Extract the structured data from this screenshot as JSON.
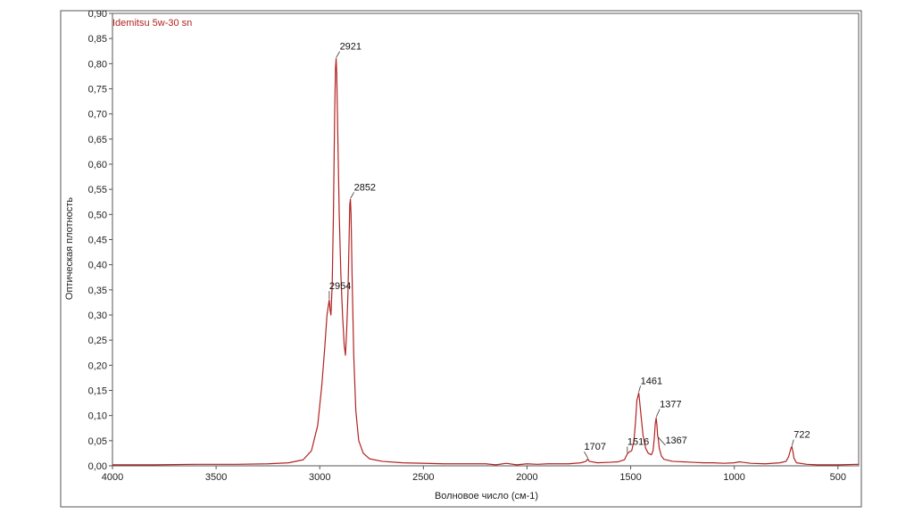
{
  "chart_data": {
    "type": "line",
    "xlabel": "Волновое число (см-1)",
    "ylabel": "Оптическая плотность",
    "xlim": [
      4000,
      400
    ],
    "x_reversed": true,
    "ylim": [
      0,
      0.9
    ],
    "x_ticks": [
      {
        "value": 4000,
        "label": "4000"
      },
      {
        "value": 3500,
        "label": "3500"
      },
      {
        "value": 3000,
        "label": "3000"
      },
      {
        "value": 2500,
        "label": "2500"
      },
      {
        "value": 2000,
        "label": "2000"
      },
      {
        "value": 1500,
        "label": "1500"
      },
      {
        "value": 1000,
        "label": "1000"
      },
      {
        "value": 500,
        "label": "500"
      }
    ],
    "y_ticks": [
      {
        "value": 0.0,
        "label": "0,00"
      },
      {
        "value": 0.05,
        "label": "0,05"
      },
      {
        "value": 0.1,
        "label": "0,10"
      },
      {
        "value": 0.15,
        "label": "0,15"
      },
      {
        "value": 0.2,
        "label": "0,20"
      },
      {
        "value": 0.25,
        "label": "0,25"
      },
      {
        "value": 0.3,
        "label": "0,30"
      },
      {
        "value": 0.35,
        "label": "0,35"
      },
      {
        "value": 0.4,
        "label": "0,40"
      },
      {
        "value": 0.45,
        "label": "0,45"
      },
      {
        "value": 0.5,
        "label": "0,50"
      },
      {
        "value": 0.55,
        "label": "0,55"
      },
      {
        "value": 0.6,
        "label": "0,60"
      },
      {
        "value": 0.65,
        "label": "0,65"
      },
      {
        "value": 0.7,
        "label": "0,70"
      },
      {
        "value": 0.75,
        "label": "0,75"
      },
      {
        "value": 0.8,
        "label": "0,80"
      },
      {
        "value": 0.85,
        "label": "0,85"
      },
      {
        "value": 0.9,
        "label": "0,90"
      }
    ],
    "grid": false,
    "legend_position": "top-left",
    "series": [
      {
        "name": "Idemitsu 5w-30 sn",
        "color": "#b22222",
        "points": [
          [
            4000,
            0.002
          ],
          [
            3800,
            0.002
          ],
          [
            3600,
            0.003
          ],
          [
            3400,
            0.003
          ],
          [
            3250,
            0.004
          ],
          [
            3150,
            0.006
          ],
          [
            3080,
            0.012
          ],
          [
            3040,
            0.03
          ],
          [
            3010,
            0.08
          ],
          [
            2990,
            0.16
          ],
          [
            2975,
            0.24
          ],
          [
            2965,
            0.3
          ],
          [
            2958,
            0.32
          ],
          [
            2954,
            0.33
          ],
          [
            2950,
            0.31
          ],
          [
            2946,
            0.3
          ],
          [
            2940,
            0.36
          ],
          [
            2934,
            0.5
          ],
          [
            2928,
            0.7
          ],
          [
            2924,
            0.79
          ],
          [
            2921,
            0.81
          ],
          [
            2918,
            0.78
          ],
          [
            2913,
            0.66
          ],
          [
            2906,
            0.5
          ],
          [
            2898,
            0.38
          ],
          [
            2890,
            0.3
          ],
          [
            2882,
            0.24
          ],
          [
            2876,
            0.22
          ],
          [
            2870,
            0.27
          ],
          [
            2864,
            0.34
          ],
          [
            2858,
            0.46
          ],
          [
            2855,
            0.52
          ],
          [
            2852,
            0.53
          ],
          [
            2849,
            0.5
          ],
          [
            2844,
            0.38
          ],
          [
            2836,
            0.22
          ],
          [
            2826,
            0.11
          ],
          [
            2812,
            0.05
          ],
          [
            2790,
            0.025
          ],
          [
            2760,
            0.014
          ],
          [
            2700,
            0.009
          ],
          [
            2600,
            0.006
          ],
          [
            2400,
            0.004
          ],
          [
            2200,
            0.004
          ],
          [
            2150,
            0.002
          ],
          [
            2100,
            0.005
          ],
          [
            2050,
            0.002
          ],
          [
            2000,
            0.004
          ],
          [
            1950,
            0.003
          ],
          [
            1900,
            0.004
          ],
          [
            1800,
            0.004
          ],
          [
            1740,
            0.006
          ],
          [
            1715,
            0.009
          ],
          [
            1707,
            0.014
          ],
          [
            1700,
            0.009
          ],
          [
            1660,
            0.006
          ],
          [
            1600,
            0.007
          ],
          [
            1560,
            0.008
          ],
          [
            1530,
            0.012
          ],
          [
            1516,
            0.024
          ],
          [
            1505,
            0.028
          ],
          [
            1495,
            0.03
          ],
          [
            1484,
            0.05
          ],
          [
            1476,
            0.09
          ],
          [
            1470,
            0.13
          ],
          [
            1464,
            0.14
          ],
          [
            1461,
            0.145
          ],
          [
            1457,
            0.13
          ],
          [
            1450,
            0.1
          ],
          [
            1440,
            0.06
          ],
          [
            1428,
            0.035
          ],
          [
            1415,
            0.025
          ],
          [
            1400,
            0.022
          ],
          [
            1392,
            0.03
          ],
          [
            1386,
            0.055
          ],
          [
            1381,
            0.085
          ],
          [
            1377,
            0.095
          ],
          [
            1373,
            0.08
          ],
          [
            1370,
            0.06
          ],
          [
            1367,
            0.055
          ],
          [
            1362,
            0.035
          ],
          [
            1352,
            0.02
          ],
          [
            1340,
            0.013
          ],
          [
            1300,
            0.009
          ],
          [
            1200,
            0.007
          ],
          [
            1150,
            0.006
          ],
          [
            1100,
            0.006
          ],
          [
            1050,
            0.005
          ],
          [
            1000,
            0.006
          ],
          [
            975,
            0.008
          ],
          [
            960,
            0.007
          ],
          [
            920,
            0.005
          ],
          [
            850,
            0.004
          ],
          [
            780,
            0.006
          ],
          [
            750,
            0.009
          ],
          [
            738,
            0.018
          ],
          [
            730,
            0.03
          ],
          [
            725,
            0.037
          ],
          [
            722,
            0.038
          ],
          [
            718,
            0.03
          ],
          [
            712,
            0.015
          ],
          [
            700,
            0.006
          ],
          [
            650,
            0.003
          ],
          [
            600,
            0.002
          ],
          [
            500,
            0.002
          ],
          [
            400,
            0.003
          ]
        ]
      }
    ],
    "annotations": [
      {
        "label": "2921",
        "x": 2921,
        "y": 0.81
      },
      {
        "label": "2852",
        "x": 2852,
        "y": 0.53
      },
      {
        "label": "2954",
        "x": 2954,
        "y": 0.33
      },
      {
        "label": "1461",
        "x": 1461,
        "y": 0.145
      },
      {
        "label": "1377",
        "x": 1377,
        "y": 0.095
      },
      {
        "label": "1367",
        "x": 1367,
        "y": 0.055
      },
      {
        "label": "1516",
        "x": 1516,
        "y": 0.024
      },
      {
        "label": "1707",
        "x": 1707,
        "y": 0.014
      },
      {
        "label": "722",
        "x": 722,
        "y": 0.038
      }
    ]
  }
}
